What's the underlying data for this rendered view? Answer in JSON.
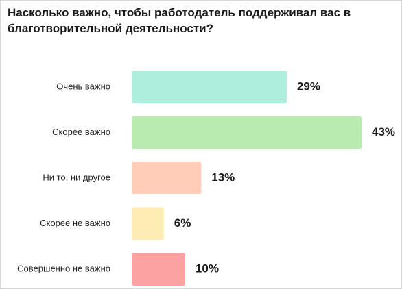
{
  "title": "Насколько важно, чтобы работодатель поддерживал вас в благотворительной деятельности?",
  "chart_data": {
    "type": "bar",
    "orientation": "horizontal",
    "title": "Насколько важно, чтобы работодатель поддерживал вас в благотворительной деятельности?",
    "categories": [
      "Очень важно",
      "Скорее важно",
      "Ни то, ни другое",
      "Скорее не важно",
      "Совершенно не важно"
    ],
    "values": [
      29,
      43,
      13,
      6,
      10
    ],
    "value_labels": [
      "29%",
      "43%",
      "13%",
      "6%",
      "10%"
    ],
    "colors": [
      "#aeeedc",
      "#b9ebb1",
      "#ffcdb8",
      "#fdedb5",
      "#fca2a2"
    ],
    "xlabel": "",
    "ylabel": "",
    "grid": false,
    "legend": "none"
  }
}
